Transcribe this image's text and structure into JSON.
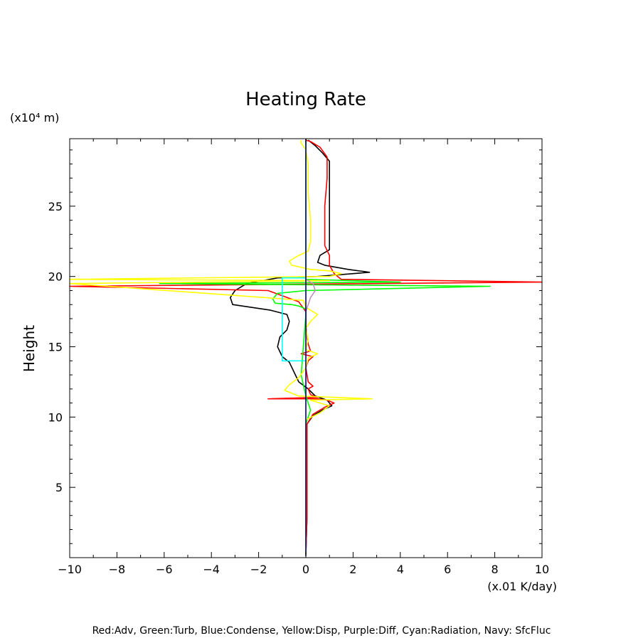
{
  "chart_data": {
    "type": "line",
    "title": "Heating Rate",
    "ylabel": "Height",
    "yunit": "(x10⁴ m)",
    "xunit": "(x.01 K/day)",
    "footer": "Red:Adv, Green:Turb, Blue:Condense, Yellow:Disp, Purple:Diff, Cyan:Radiation, Navy: SfcFluc",
    "xlim": [
      -10,
      10
    ],
    "ylim": [
      0,
      29.8
    ],
    "xticks": [
      "-10",
      "-8",
      "-6",
      "-4",
      "-2",
      "0",
      "2",
      "4",
      "6",
      "8",
      "10"
    ],
    "yticks": [
      "5",
      "10",
      "15",
      "20",
      "25"
    ],
    "ytick_values": [
      5,
      10,
      15,
      20,
      25
    ],
    "grid": false,
    "series": [
      {
        "color": "#000000",
        "points": [
          [
            0,
            0.2
          ],
          [
            0.05,
            3
          ],
          [
            0.05,
            6
          ],
          [
            0.05,
            9.5
          ],
          [
            0.3,
            10.1
          ],
          [
            0.7,
            10.5
          ],
          [
            1.1,
            10.8
          ],
          [
            0.9,
            11.2
          ],
          [
            0.4,
            11.5
          ],
          [
            0.1,
            12.0
          ],
          [
            -0.3,
            12.5
          ],
          [
            -0.5,
            13.2
          ],
          [
            -0.7,
            13.9
          ],
          [
            -1.0,
            14.3
          ],
          [
            -1.2,
            15.0
          ],
          [
            -1.1,
            15.7
          ],
          [
            -0.8,
            16.2
          ],
          [
            -0.7,
            16.8
          ],
          [
            -0.8,
            17.3
          ],
          [
            -1.5,
            17.6
          ],
          [
            -3.1,
            18.0
          ],
          [
            -3.2,
            18.5
          ],
          [
            -3.0,
            19.0
          ],
          [
            -2.5,
            19.5
          ],
          [
            -1.2,
            19.9
          ],
          [
            0.5,
            20.0
          ],
          [
            2.0,
            20.2
          ],
          [
            2.7,
            20.3
          ],
          [
            1.8,
            20.5
          ],
          [
            0.8,
            20.8
          ],
          [
            0.5,
            21.0
          ],
          [
            0.6,
            21.5
          ],
          [
            1.0,
            21.9
          ],
          [
            1.0,
            24
          ],
          [
            1.0,
            27
          ],
          [
            1.0,
            28.2
          ],
          [
            0.7,
            28.8
          ],
          [
            0.4,
            29.3
          ],
          [
            0.1,
            29.7
          ]
        ]
      },
      {
        "color": "#ff0000",
        "points": [
          [
            0,
            0.2
          ],
          [
            0.05,
            3
          ],
          [
            0.05,
            6
          ],
          [
            0.05,
            9.5
          ],
          [
            0.3,
            10.2
          ],
          [
            0.8,
            10.7
          ],
          [
            1.2,
            11.0
          ],
          [
            0.9,
            11.2
          ],
          [
            0.5,
            11.3
          ],
          [
            -1.6,
            11.3
          ],
          [
            0.5,
            11.4
          ],
          [
            0.2,
            11.6
          ],
          [
            0.1,
            12.0
          ],
          [
            0.3,
            12.2
          ],
          [
            0.1,
            12.5
          ],
          [
            0.0,
            13.5
          ],
          [
            0.1,
            14.0
          ],
          [
            0.3,
            14.3
          ],
          [
            -0.2,
            14.5
          ],
          [
            0.2,
            14.7
          ],
          [
            0.1,
            15.2
          ],
          [
            0.0,
            16.5
          ],
          [
            0.0,
            17.5
          ],
          [
            -0.3,
            18.2
          ],
          [
            -1.6,
            19.0
          ],
          [
            -10,
            19.3
          ],
          [
            10,
            19.6
          ],
          [
            1.5,
            19.8
          ],
          [
            1.2,
            20.2
          ],
          [
            1.0,
            20.8
          ],
          [
            1.0,
            21.5
          ],
          [
            0.8,
            22.2
          ],
          [
            0.8,
            23.5
          ],
          [
            0.8,
            25
          ],
          [
            0.9,
            27
          ],
          [
            0.9,
            28.5
          ],
          [
            0.6,
            29.2
          ],
          [
            0.2,
            29.6
          ],
          [
            0,
            29.7
          ]
        ]
      },
      {
        "color": "#00ff00",
        "points": [
          [
            0,
            0.2
          ],
          [
            0,
            9.5
          ],
          [
            0.2,
            10.5
          ],
          [
            0,
            11.5
          ],
          [
            -0.2,
            13.0
          ],
          [
            0,
            17.3
          ],
          [
            0,
            17.7
          ],
          [
            -0.3,
            17.9
          ],
          [
            -0.6,
            18.0
          ],
          [
            -1.3,
            18.1
          ],
          [
            -1.4,
            18.4
          ],
          [
            -1.2,
            18.8
          ],
          [
            0.0,
            19.0
          ],
          [
            7.8,
            19.3
          ],
          [
            -6.2,
            19.5
          ],
          [
            4.0,
            19.6
          ],
          [
            0.0,
            19.8
          ],
          [
            0,
            20.0
          ],
          [
            0,
            29.7
          ]
        ]
      },
      {
        "color": "#ffff00",
        "points": [
          [
            0,
            0.2
          ],
          [
            0,
            9.8
          ],
          [
            0.6,
            10.3
          ],
          [
            1.0,
            10.8
          ],
          [
            0.6,
            11.0
          ],
          [
            0.2,
            11.2
          ],
          [
            2.8,
            11.3
          ],
          [
            -0.3,
            11.5
          ],
          [
            -0.9,
            11.9
          ],
          [
            -0.7,
            12.3
          ],
          [
            -0.3,
            12.8
          ],
          [
            0,
            13.5
          ],
          [
            0.1,
            14.2
          ],
          [
            0.5,
            14.5
          ],
          [
            0.0,
            14.8
          ],
          [
            0.1,
            15.5
          ],
          [
            0.0,
            16.3
          ],
          [
            0.2,
            16.8
          ],
          [
            0.5,
            17.3
          ],
          [
            0.3,
            17.5
          ],
          [
            0.0,
            17.8
          ],
          [
            -0.1,
            18.3
          ],
          [
            -10,
            19.5
          ],
          [
            1.0,
            19.7
          ],
          [
            -10,
            19.8
          ],
          [
            1.0,
            20.0
          ],
          [
            1.5,
            20.2
          ],
          [
            1.0,
            20.4
          ],
          [
            0.2,
            20.5
          ],
          [
            -0.6,
            20.8
          ],
          [
            -0.7,
            21.1
          ],
          [
            -0.3,
            21.5
          ],
          [
            0.1,
            21.8
          ],
          [
            0.2,
            22.5
          ],
          [
            0.2,
            24
          ],
          [
            0.1,
            26
          ],
          [
            0.1,
            28
          ],
          [
            0.0,
            29
          ],
          [
            -0.2,
            29.5
          ],
          [
            -0.2,
            29.7
          ]
        ]
      },
      {
        "color": "#c08fc0",
        "points": [
          [
            0,
            17.5
          ],
          [
            0.1,
            18.0
          ],
          [
            0.2,
            18.5
          ],
          [
            0.4,
            19.0
          ],
          [
            0.3,
            19.5
          ],
          [
            0,
            19.8
          ]
        ]
      },
      {
        "color": "#00ffff",
        "points": [
          [
            0,
            14.0
          ],
          [
            -1.0,
            14.0
          ],
          [
            -1.0,
            17.0
          ],
          [
            -1.0,
            19.9
          ],
          [
            0,
            19.9
          ]
        ]
      },
      {
        "color": "#000080",
        "points": [
          [
            0,
            0.1
          ],
          [
            0,
            29.8
          ]
        ]
      }
    ]
  }
}
